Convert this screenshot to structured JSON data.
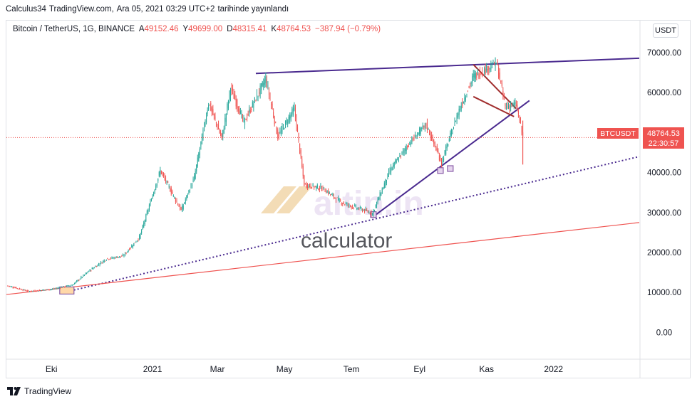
{
  "header": {
    "author": "Calculus34",
    "site": "TradingView.com,",
    "date": "Ara 05, 2021 03:29 UTC+2",
    "published_text": "tarihinde yayınlandı"
  },
  "legend": {
    "symbol": "Bitcoin / TetherUS, 1G, BINANCE",
    "open_label": "A",
    "open": "49152.46",
    "high_label": "Y",
    "high": "49699.00",
    "low_label": "D",
    "low": "48315.41",
    "close_label": "K",
    "close": "48764.53",
    "change": "−387.94 (−0.79%)"
  },
  "currency_button": "USDT",
  "price_tag": {
    "symbol": "BTCUSDT",
    "price": "48764.53",
    "countdown": "22:30:57"
  },
  "watermark": {
    "brand": "altin.in",
    "word": "calculator"
  },
  "footer": {
    "brand": "TradingView"
  },
  "colors": {
    "up": "#26a69a",
    "down": "#ef5350",
    "trend": "#4a2a8f",
    "wedge": "#a12e2e",
    "support": "#ef5350"
  },
  "chart_data": {
    "type": "line",
    "title": "Bitcoin / TetherUS, 1G, BINANCE",
    "y_ticks": [
      "70000.00",
      "60000.00",
      "50000.00",
      "40000.00",
      "30000.00",
      "20000.00",
      "10000.00",
      "0.00"
    ],
    "y_tick_values": [
      70000,
      60000,
      50000,
      40000,
      30000,
      20000,
      10000,
      0
    ],
    "ylim": [
      -6500,
      78000
    ],
    "x_ticks": [
      "Eki",
      "2021",
      "Mar",
      "May",
      "Tem",
      "Eyl",
      "Kas",
      "2022"
    ],
    "x_tick_dates": [
      "2020-10-01",
      "2021-01-01",
      "2021-03-01",
      "2021-05-01",
      "2021-07-01",
      "2021-09-01",
      "2021-11-01",
      "2022-01-01"
    ],
    "xlim": [
      "2020-08-21",
      "2022-03-20"
    ],
    "grid": false,
    "last_price": 48764.53,
    "series": [
      {
        "x": [
          "2020-08-22",
          "2020-09-10",
          "2020-10-01",
          "2020-10-20",
          "2020-11-05",
          "2020-11-20",
          "2020-12-05",
          "2020-12-20",
          "2021-01-08",
          "2021-01-27",
          "2021-02-08",
          "2021-02-21",
          "2021-03-05",
          "2021-03-13",
          "2021-03-25",
          "2021-04-14",
          "2021-04-25",
          "2021-05-10",
          "2021-05-19",
          "2021-06-05",
          "2021-06-22",
          "2021-07-20",
          "2021-08-05",
          "2021-08-23",
          "2021-09-07",
          "2021-09-21",
          "2021-10-06",
          "2021-10-20",
          "2021-11-10",
          "2021-11-18",
          "2021-11-28",
          "2021-12-04"
        ],
        "values": [
          11700,
          10300,
          10800,
          11900,
          15600,
          18400,
          19100,
          23800,
          40500,
          30500,
          38800,
          57500,
          48500,
          61200,
          52500,
          63500,
          49000,
          56000,
          37000,
          36000,
          32500,
          29800,
          40500,
          47500,
          52000,
          42500,
          55000,
          64000,
          67500,
          56500,
          57000,
          48764.53
        ]
      }
    ],
    "annotations": [
      {
        "name": "upper resistance",
        "points": [
          [
            "2021-04-05",
            64800
          ],
          [
            "2022-03-20",
            68600
          ]
        ]
      },
      {
        "name": "rising support",
        "points": [
          [
            "2021-07-21",
            29000
          ],
          [
            "2021-12-10",
            58000
          ]
        ]
      },
      {
        "name": "long-term dotted support",
        "points": [
          [
            "2020-10-12",
            10000
          ],
          [
            "2022-03-20",
            44000
          ]
        ]
      },
      {
        "name": "long-term support",
        "points": [
          [
            "2020-08-21",
            9500
          ],
          [
            "2022-03-20",
            27500
          ]
        ]
      },
      {
        "name": "falling wedge top",
        "points": [
          [
            "2021-10-20",
            67000
          ],
          [
            "2021-11-28",
            56000
          ]
        ]
      },
      {
        "name": "falling wedge bottom",
        "points": [
          [
            "2021-10-20",
            59000
          ],
          [
            "2021-11-26",
            54000
          ]
        ]
      }
    ]
  }
}
